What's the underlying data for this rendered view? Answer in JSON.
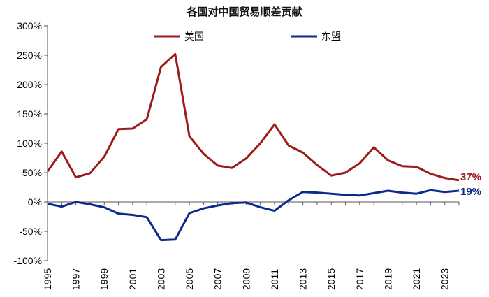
{
  "chart_data": {
    "type": "line",
    "title": "各国对中国贸易顺差贡献",
    "x": [
      1995,
      1996,
      1997,
      1998,
      1999,
      2000,
      2001,
      2002,
      2003,
      2004,
      2005,
      2006,
      2007,
      2008,
      2009,
      2010,
      2011,
      2012,
      2013,
      2014,
      2015,
      2016,
      2017,
      2018,
      2019,
      2020,
      2021,
      2022,
      2023,
      2024
    ],
    "x_tick_labels": [
      "1995",
      "1997",
      "1999",
      "2001",
      "2003",
      "2005",
      "2007",
      "2009",
      "2011",
      "2013",
      "2015",
      "2017",
      "2019",
      "2021",
      "2023"
    ],
    "y_tick_labels": [
      "300%",
      "250%",
      "200%",
      "150%",
      "100%",
      "50%",
      "0%",
      "-50%",
      "-100%"
    ],
    "ylim": [
      -100,
      300
    ],
    "ylabel_unit": "%",
    "grid": false,
    "legend_position": "top",
    "series": [
      {
        "name": "美国",
        "color": "#9b1a1a",
        "values": [
          52,
          86,
          42,
          49,
          77,
          124,
          125,
          141,
          230,
          252,
          112,
          82,
          62,
          58,
          74,
          100,
          132,
          96,
          84,
          63,
          45,
          50,
          66,
          93,
          71,
          61,
          60,
          48,
          41,
          37
        ],
        "end_label": "37%"
      },
      {
        "name": "东盟",
        "color": "#0b2a8c",
        "values": [
          -3,
          -8,
          0,
          -4,
          -9,
          -20,
          -22,
          -26,
          -65,
          -64,
          -19,
          -11,
          -6,
          -2,
          -1,
          -9,
          -15,
          3,
          17,
          16,
          14,
          12,
          11,
          15,
          19,
          16,
          14,
          20,
          17,
          19
        ],
        "end_label": "19%"
      }
    ]
  }
}
